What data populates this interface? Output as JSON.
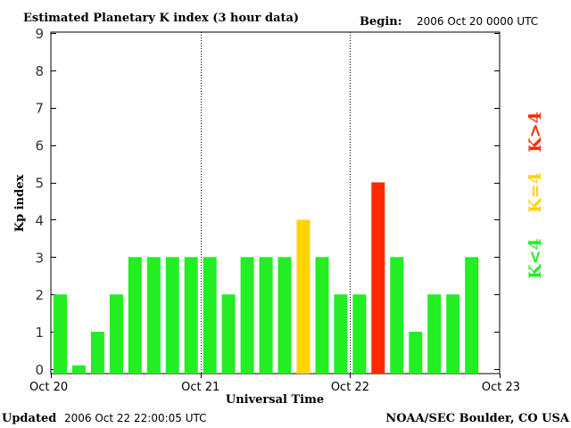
{
  "header": {
    "title": "Estimated Planetary K index (3 hour data)",
    "begin_label": "Begin:",
    "begin_value": "2006 Oct 20 0000 UTC"
  },
  "footer": {
    "updated_label": "Updated",
    "updated_value": "2006 Oct 22 22:00:05 UTC",
    "source": "NOAA/SEC Boulder, CO USA"
  },
  "legend": {
    "low": "K<4",
    "equal": "K=4",
    "high": "K>4"
  },
  "colors": {
    "low": "#22ee22",
    "equal": "#ffd400",
    "high": "#ff2a00",
    "axis": "#000000",
    "tick_label": "#333333"
  },
  "chart_data": {
    "type": "bar",
    "title": "Estimated Planetary K index (3 hour data)",
    "xlabel": "Universal Time",
    "ylabel": "Kp index",
    "ylim": [
      0,
      9
    ],
    "yticks": [
      0,
      1,
      2,
      3,
      4,
      5,
      6,
      7,
      8,
      9
    ],
    "xlim_days": [
      0,
      3
    ],
    "xtick_labels": [
      "Oct 20",
      "Oct 21",
      "Oct 22",
      "Oct 23"
    ],
    "day_separators": [
      1,
      2
    ],
    "interval_hours": 3,
    "values": [
      2,
      0.1,
      1,
      2,
      3,
      3,
      3,
      3,
      3,
      2,
      3,
      3,
      3,
      4,
      3,
      2,
      2,
      5,
      3,
      1,
      2,
      2,
      3
    ],
    "color_rule": "K<4 green, K=4 yellow, K>4 red"
  }
}
